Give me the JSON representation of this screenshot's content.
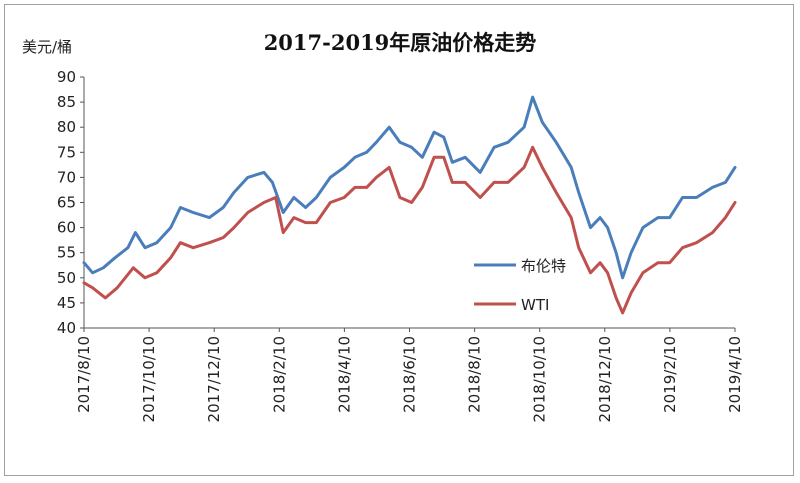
{
  "chart_data": {
    "type": "line",
    "title": "2017-2019年原油价格走势",
    "ylabel": "美元/桶",
    "xlabel": "",
    "ylim": [
      40,
      90
    ],
    "yticks": [
      40,
      45,
      50,
      55,
      60,
      65,
      70,
      75,
      80,
      85,
      90
    ],
    "xlim": [
      "2017-08-10",
      "2019-04-10"
    ],
    "xticks": [
      "2017/8/10",
      "2017/10/10",
      "2017/12/10",
      "2018/2/10",
      "2018/4/10",
      "2018/6/10",
      "2018/8/10",
      "2018/10/10",
      "2018/12/10",
      "2019/2/10",
      "2019/4/10"
    ],
    "grid": false,
    "legend_position": "right",
    "series": [
      {
        "name": "布伦特",
        "color": "#4a7ebb",
        "points": [
          [
            "2017-08-10",
            53
          ],
          [
            "2017-08-18",
            51
          ],
          [
            "2017-08-28",
            52
          ],
          [
            "2017-09-08",
            54
          ],
          [
            "2017-09-20",
            56
          ],
          [
            "2017-09-27",
            59
          ],
          [
            "2017-10-06",
            56
          ],
          [
            "2017-10-17",
            57
          ],
          [
            "2017-10-30",
            60
          ],
          [
            "2017-11-08",
            64
          ],
          [
            "2017-11-20",
            63
          ],
          [
            "2017-12-05",
            62
          ],
          [
            "2017-12-18",
            64
          ],
          [
            "2017-12-28",
            67
          ],
          [
            "2018-01-10",
            70
          ],
          [
            "2018-01-25",
            71
          ],
          [
            "2018-02-02",
            69
          ],
          [
            "2018-02-12",
            63
          ],
          [
            "2018-02-22",
            66
          ],
          [
            "2018-03-05",
            64
          ],
          [
            "2018-03-15",
            66
          ],
          [
            "2018-03-28",
            70
          ],
          [
            "2018-04-10",
            72
          ],
          [
            "2018-04-20",
            74
          ],
          [
            "2018-05-01",
            75
          ],
          [
            "2018-05-10",
            77
          ],
          [
            "2018-05-22",
            80
          ],
          [
            "2018-06-01",
            77
          ],
          [
            "2018-06-12",
            76
          ],
          [
            "2018-06-22",
            74
          ],
          [
            "2018-07-03",
            79
          ],
          [
            "2018-07-12",
            78
          ],
          [
            "2018-07-20",
            73
          ],
          [
            "2018-08-01",
            74
          ],
          [
            "2018-08-15",
            71
          ],
          [
            "2018-08-28",
            76
          ],
          [
            "2018-09-10",
            77
          ],
          [
            "2018-09-25",
            80
          ],
          [
            "2018-10-03",
            86
          ],
          [
            "2018-10-12",
            81
          ],
          [
            "2018-10-25",
            77
          ],
          [
            "2018-11-08",
            72
          ],
          [
            "2018-11-15",
            67
          ],
          [
            "2018-11-26",
            60
          ],
          [
            "2018-12-05",
            62
          ],
          [
            "2018-12-12",
            60
          ],
          [
            "2018-12-20",
            55
          ],
          [
            "2018-12-26",
            50
          ],
          [
            "2019-01-03",
            55
          ],
          [
            "2019-01-14",
            60
          ],
          [
            "2019-01-28",
            62
          ],
          [
            "2019-02-08",
            62
          ],
          [
            "2019-02-20",
            66
          ],
          [
            "2019-03-05",
            66
          ],
          [
            "2019-03-20",
            68
          ],
          [
            "2019-04-01",
            69
          ],
          [
            "2019-04-10",
            72
          ]
        ]
      },
      {
        "name": "WTI",
        "color": "#c0504d",
        "points": [
          [
            "2017-08-10",
            49
          ],
          [
            "2017-08-18",
            48
          ],
          [
            "2017-08-30",
            46
          ],
          [
            "2017-09-10",
            48
          ],
          [
            "2017-09-25",
            52
          ],
          [
            "2017-10-06",
            50
          ],
          [
            "2017-10-17",
            51
          ],
          [
            "2017-10-30",
            54
          ],
          [
            "2017-11-08",
            57
          ],
          [
            "2017-11-20",
            56
          ],
          [
            "2017-12-05",
            57
          ],
          [
            "2017-12-18",
            58
          ],
          [
            "2017-12-28",
            60
          ],
          [
            "2018-01-10",
            63
          ],
          [
            "2018-01-25",
            65
          ],
          [
            "2018-02-05",
            66
          ],
          [
            "2018-02-12",
            59
          ],
          [
            "2018-02-22",
            62
          ],
          [
            "2018-03-05",
            61
          ],
          [
            "2018-03-15",
            61
          ],
          [
            "2018-03-28",
            65
          ],
          [
            "2018-04-10",
            66
          ],
          [
            "2018-04-20",
            68
          ],
          [
            "2018-05-01",
            68
          ],
          [
            "2018-05-10",
            70
          ],
          [
            "2018-05-22",
            72
          ],
          [
            "2018-06-01",
            66
          ],
          [
            "2018-06-12",
            65
          ],
          [
            "2018-06-22",
            68
          ],
          [
            "2018-07-03",
            74
          ],
          [
            "2018-07-12",
            74
          ],
          [
            "2018-07-20",
            69
          ],
          [
            "2018-08-01",
            69
          ],
          [
            "2018-08-15",
            66
          ],
          [
            "2018-08-28",
            69
          ],
          [
            "2018-09-10",
            69
          ],
          [
            "2018-09-25",
            72
          ],
          [
            "2018-10-03",
            76
          ],
          [
            "2018-10-12",
            72
          ],
          [
            "2018-10-25",
            67
          ],
          [
            "2018-11-08",
            62
          ],
          [
            "2018-11-15",
            56
          ],
          [
            "2018-11-26",
            51
          ],
          [
            "2018-12-05",
            53
          ],
          [
            "2018-12-12",
            51
          ],
          [
            "2018-12-20",
            46
          ],
          [
            "2018-12-26",
            43
          ],
          [
            "2019-01-03",
            47
          ],
          [
            "2019-01-14",
            51
          ],
          [
            "2019-01-28",
            53
          ],
          [
            "2019-02-08",
            53
          ],
          [
            "2019-02-20",
            56
          ],
          [
            "2019-03-05",
            57
          ],
          [
            "2019-03-20",
            59
          ],
          [
            "2019-04-01",
            62
          ],
          [
            "2019-04-10",
            65
          ]
        ]
      }
    ]
  }
}
